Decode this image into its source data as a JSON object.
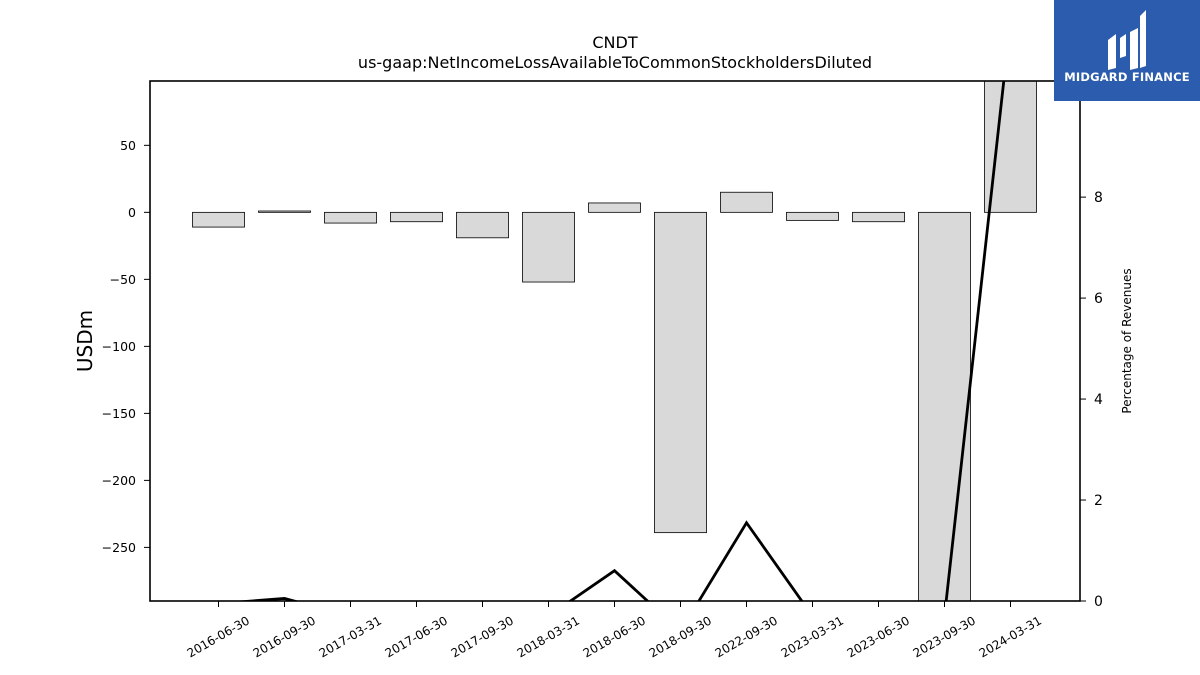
{
  "chart_data": {
    "type": "bar",
    "title": "CNDT",
    "subtitle": "us-gaap:NetIncomeLossAvailableToCommonStockholdersDiluted",
    "ylabel": "USDm",
    "y2label": "Percentage of Revenues",
    "categories": [
      "2016-06-30",
      "2016-09-30",
      "2017-03-31",
      "2017-06-30",
      "2017-09-30",
      "2018-03-31",
      "2018-06-30",
      "2018-09-30",
      "2022-09-30",
      "2023-03-31",
      "2023-06-30",
      "2023-09-30",
      "2024-03-31"
    ],
    "values": [
      -11,
      1,
      -8,
      -7,
      -19,
      -52,
      7,
      -239,
      15,
      -6,
      -7,
      -296,
      108
    ],
    "ylim": [
      -290,
      98
    ],
    "yticks": [
      50,
      0,
      -50,
      -100,
      -150,
      -200,
      -250
    ],
    "ytick_labels": [
      "50",
      "0",
      "−50",
      "−100",
      "−150",
      "−200",
      "−250"
    ],
    "line_series": {
      "values": [
        -0.05,
        0.05,
        -0.3,
        -0.3,
        -0.3,
        -0.3,
        0.6,
        -0.6,
        1.55,
        -0.3,
        -0.3,
        -0.3,
        11.5
      ]
    },
    "y2lim": [
      0,
      10.3
    ],
    "y2ticks": [
      0,
      2,
      4,
      6,
      8,
      10
    ],
    "colors": {
      "bar_fill": "#d9d9d9",
      "bar_edge": "#000000",
      "line": "#000000"
    }
  },
  "logo": {
    "text": "MIDGARD FINANCE",
    "background": "#2b5cad"
  }
}
